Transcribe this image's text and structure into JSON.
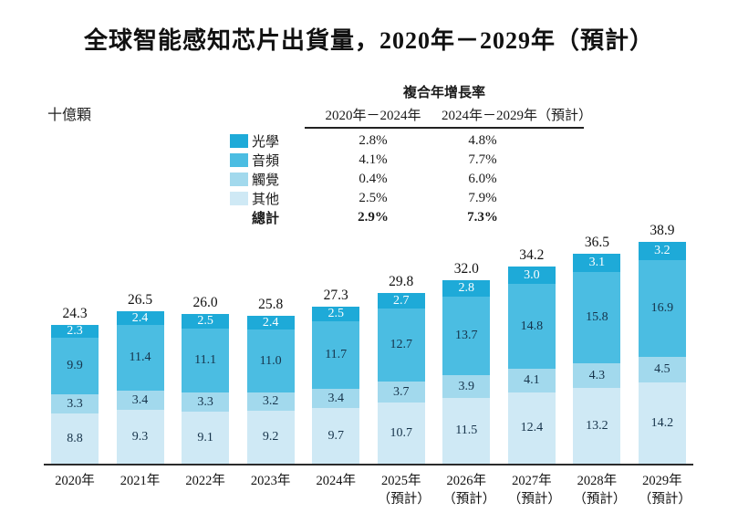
{
  "title": "全球智能感知芯片出貨量，2020年－2029年（預計）",
  "unit_label": "十億顆",
  "cagr": {
    "title": "複合年增長率",
    "col1": "2020年－2024年",
    "col2": "2024年－2029年（預計）",
    "rows": [
      {
        "label": "光學",
        "swatch": "#1eaad8",
        "v1": "2.8%",
        "v2": "4.8%",
        "bold": false
      },
      {
        "label": "音頻",
        "swatch": "#4bbde2",
        "v1": "4.1%",
        "v2": "7.7%",
        "bold": false
      },
      {
        "label": "觸覺",
        "swatch": "#a2d9ed",
        "v1": "0.4%",
        "v2": "6.0%",
        "bold": false
      },
      {
        "label": "其他",
        "swatch": "#cfe9f5",
        "v1": "2.5%",
        "v2": "7.9%",
        "bold": false
      },
      {
        "label": "總計",
        "swatch": null,
        "v1": "2.9%",
        "v2": "7.3%",
        "bold": true
      }
    ]
  },
  "colors": {
    "optical": "#1eaad8",
    "audio": "#4bbde2",
    "touch": "#a2d9ed",
    "other": "#cfe9f5",
    "axis": "#2b2b2b",
    "segment_text": "#16334a",
    "segment_text_on_dark": "#ffffff"
  },
  "chart_data": {
    "type": "bar",
    "stacked": true,
    "title": "全球智能感知芯片出貨量，2020年－2029年（預計）",
    "ylabel": "十億顆",
    "ylim": [
      0,
      40
    ],
    "grid": false,
    "legend_position": "left-of-cagr-table",
    "categories": [
      "2020年",
      "2021年",
      "2022年",
      "2023年",
      "2024年",
      "2025年",
      "2026年",
      "2027年",
      "2028年",
      "2029年"
    ],
    "category_notes": [
      "",
      "",
      "",
      "",
      "",
      "（預計）",
      "（預計）",
      "（預計）",
      "（預計）",
      "（預計）"
    ],
    "series": [
      {
        "name": "光學",
        "color": "#1eaad8",
        "text_color": "#ffffff",
        "values": [
          2.3,
          2.4,
          2.5,
          2.4,
          2.5,
          2.7,
          2.8,
          3.0,
          3.1,
          3.2
        ]
      },
      {
        "name": "音頻",
        "color": "#4bbde2",
        "text_color": "#16334a",
        "values": [
          9.9,
          11.4,
          11.1,
          11.0,
          11.7,
          12.7,
          13.7,
          14.8,
          15.8,
          16.9
        ]
      },
      {
        "name": "觸覺",
        "color": "#a2d9ed",
        "text_color": "#16334a",
        "values": [
          3.3,
          3.4,
          3.3,
          3.2,
          3.4,
          3.7,
          3.9,
          4.1,
          4.3,
          4.5
        ]
      },
      {
        "name": "其他",
        "color": "#cfe9f5",
        "text_color": "#16334a",
        "values": [
          8.8,
          9.3,
          9.1,
          9.2,
          9.7,
          10.7,
          11.5,
          12.4,
          13.2,
          14.2
        ]
      }
    ],
    "totals": [
      24.3,
      26.5,
      26.0,
      25.8,
      27.3,
      29.8,
      32.0,
      34.2,
      36.5,
      38.9
    ]
  }
}
